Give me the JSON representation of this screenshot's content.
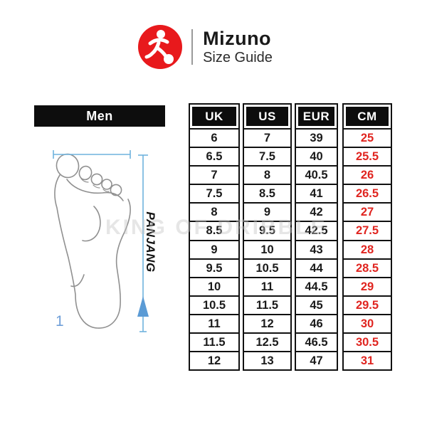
{
  "brand": {
    "name": "Mizuno",
    "subtitle": "Size Guide",
    "logo_icon": "runner-kicking-ball-icon",
    "logo_color": "#e8191c"
  },
  "section": {
    "title": "Men"
  },
  "diagram": {
    "length_label": "PANJANG",
    "note": "1",
    "measure_color": "#6fb3de",
    "foot_icon": "foot-sole-outline"
  },
  "watermark": "KING OF DRIBBLE",
  "size_table": {
    "columns": [
      "UK",
      "US",
      "EUR",
      "CM"
    ],
    "cm_color": "#e02520",
    "rows": [
      [
        "6",
        "7",
        "39",
        "25"
      ],
      [
        "6.5",
        "7.5",
        "40",
        "25.5"
      ],
      [
        "7",
        "8",
        "40.5",
        "26"
      ],
      [
        "7.5",
        "8.5",
        "41",
        "26.5"
      ],
      [
        "8",
        "9",
        "42",
        "27"
      ],
      [
        "8.5",
        "9.5",
        "42.5",
        "27.5"
      ],
      [
        "9",
        "10",
        "43",
        "28"
      ],
      [
        "9.5",
        "10.5",
        "44",
        "28.5"
      ],
      [
        "10",
        "11",
        "44.5",
        "29"
      ],
      [
        "10.5",
        "11.5",
        "45",
        "29.5"
      ],
      [
        "11",
        "12",
        "46",
        "30"
      ],
      [
        "11.5",
        "12.5",
        "46.5",
        "30.5"
      ],
      [
        "12",
        "13",
        "47",
        "31"
      ]
    ]
  },
  "chart_data": {
    "type": "table",
    "title": "Mizuno Size Guide - Men",
    "columns": [
      "UK",
      "US",
      "EUR",
      "CM"
    ],
    "rows": [
      [
        "6",
        "7",
        "39",
        "25"
      ],
      [
        "6.5",
        "7.5",
        "40",
        "25.5"
      ],
      [
        "7",
        "8",
        "40.5",
        "26"
      ],
      [
        "7.5",
        "8.5",
        "41",
        "26.5"
      ],
      [
        "8",
        "9",
        "42",
        "27"
      ],
      [
        "8.5",
        "9.5",
        "42.5",
        "27.5"
      ],
      [
        "9",
        "10",
        "43",
        "28"
      ],
      [
        "9.5",
        "10.5",
        "44",
        "28.5"
      ],
      [
        "10",
        "11",
        "44.5",
        "29"
      ],
      [
        "10.5",
        "11.5",
        "45",
        "29.5"
      ],
      [
        "11",
        "12",
        "46",
        "30"
      ],
      [
        "11.5",
        "12.5",
        "46.5",
        "30.5"
      ],
      [
        "12",
        "13",
        "47",
        "31"
      ]
    ]
  }
}
